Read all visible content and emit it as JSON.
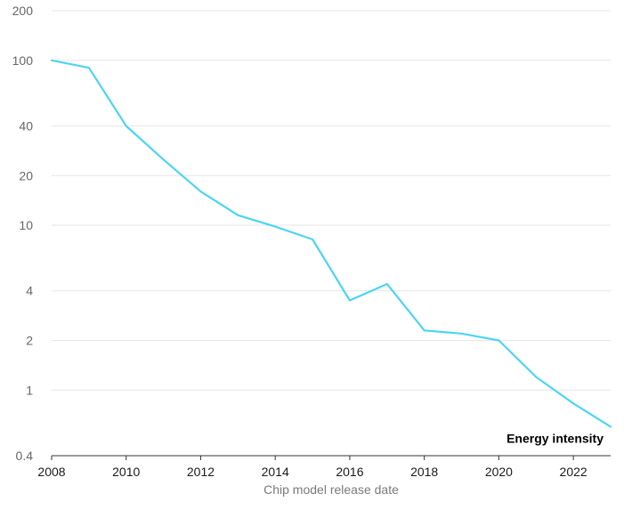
{
  "chart_data": {
    "type": "line",
    "scale": "log",
    "ylim": [
      0.4,
      200
    ],
    "xlim": [
      2008,
      2023
    ],
    "y_ticks": [
      0.4,
      1,
      2,
      4,
      10,
      20,
      40,
      100,
      200
    ],
    "y_tick_labels": [
      "0.4",
      "1",
      "2",
      "4",
      "10",
      "20",
      "40",
      "100",
      "200"
    ],
    "x_ticks": [
      2008,
      2010,
      2012,
      2014,
      2016,
      2018,
      2020,
      2022
    ],
    "x_tick_labels": [
      "2008",
      "2010",
      "2012",
      "2014",
      "2016",
      "2018",
      "2020",
      "2022"
    ],
    "xlabel": "Chip model release date",
    "ylabel": "",
    "grid": true,
    "colors": {
      "line": "#4dd4f4",
      "grid": "#e6e6e6",
      "axis": "#333333"
    },
    "series": [
      {
        "name": "Energy intensity",
        "x": [
          2008,
          2009,
          2010,
          2011,
          2012,
          2013,
          2014,
          2015,
          2016,
          2017,
          2018,
          2019,
          2020,
          2021,
          2022,
          2023
        ],
        "values": [
          100,
          90,
          40,
          25,
          16,
          11.5,
          9.8,
          8.2,
          3.5,
          4.4,
          2.3,
          2.2,
          2.0,
          1.2,
          0.83,
          0.6
        ]
      }
    ]
  }
}
